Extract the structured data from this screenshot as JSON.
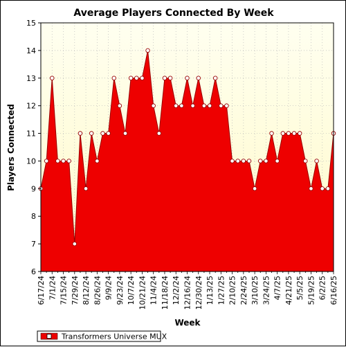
{
  "chart_data": {
    "type": "area",
    "title": "Average Players Connected By Week",
    "xlabel": "Week",
    "ylabel": "Players Connected",
    "ylim": [
      6,
      15
    ],
    "yticks": [
      6,
      7,
      8,
      9,
      10,
      11,
      12,
      13,
      14,
      15
    ],
    "grid": true,
    "legend_position": "bottom-left",
    "colors": {
      "fill": "#ee0000",
      "line": "#990000",
      "plot_bg_top": "#fffff0",
      "plot_bg_bottom": "#fffac8",
      "grid": "#b8b8b8",
      "marker_fill": "#ffffff"
    },
    "x_tick_labels": [
      "6/17/24",
      "7/1/24",
      "7/15/24",
      "7/29/24",
      "8/12/24",
      "8/26/24",
      "9/9/24",
      "9/23/24",
      "10/7/24",
      "10/21/24",
      "11/4/24",
      "11/18/24",
      "12/2/24",
      "12/16/24",
      "12/30/24",
      "1/13/25",
      "1/27/25",
      "2/10/25",
      "2/24/25",
      "3/10/25",
      "3/24/25",
      "4/7/25",
      "4/21/25",
      "5/5/25",
      "5/19/25",
      "6/2/25",
      "6/16/25"
    ],
    "series": [
      {
        "name": "Transformers Universe MUX",
        "x": [
          "6/17/24",
          "6/24/24",
          "7/1/24",
          "7/8/24",
          "7/15/24",
          "7/22/24",
          "7/29/24",
          "8/5/24",
          "8/12/24",
          "8/19/24",
          "8/26/24",
          "9/2/24",
          "9/9/24",
          "9/16/24",
          "9/23/24",
          "9/30/24",
          "10/7/24",
          "10/14/24",
          "10/21/24",
          "10/28/24",
          "11/4/24",
          "11/11/24",
          "11/18/24",
          "11/25/24",
          "12/2/24",
          "12/9/24",
          "12/16/24",
          "12/23/24",
          "12/30/24",
          "1/6/25",
          "1/13/25",
          "1/20/25",
          "1/27/25",
          "2/3/25",
          "2/10/25",
          "2/17/25",
          "2/24/25",
          "3/3/25",
          "3/10/25",
          "3/17/25",
          "3/24/25",
          "3/31/25",
          "4/7/25",
          "4/14/25",
          "4/21/25",
          "4/28/25",
          "5/5/25",
          "5/12/25",
          "5/19/25",
          "5/26/25",
          "6/2/25",
          "6/9/25",
          "6/16/25"
        ],
        "values": [
          9,
          10,
          13,
          10,
          10,
          10,
          7,
          11,
          9,
          11,
          10,
          11,
          11,
          13,
          12,
          11,
          13,
          13,
          13,
          14,
          12,
          11,
          13,
          13,
          12,
          12,
          13,
          12,
          13,
          12,
          12,
          13,
          12,
          12,
          10,
          10,
          10,
          10,
          9,
          10,
          10,
          11,
          10,
          11,
          11,
          11,
          11,
          10,
          9,
          10,
          9,
          9,
          11
        ]
      }
    ]
  }
}
